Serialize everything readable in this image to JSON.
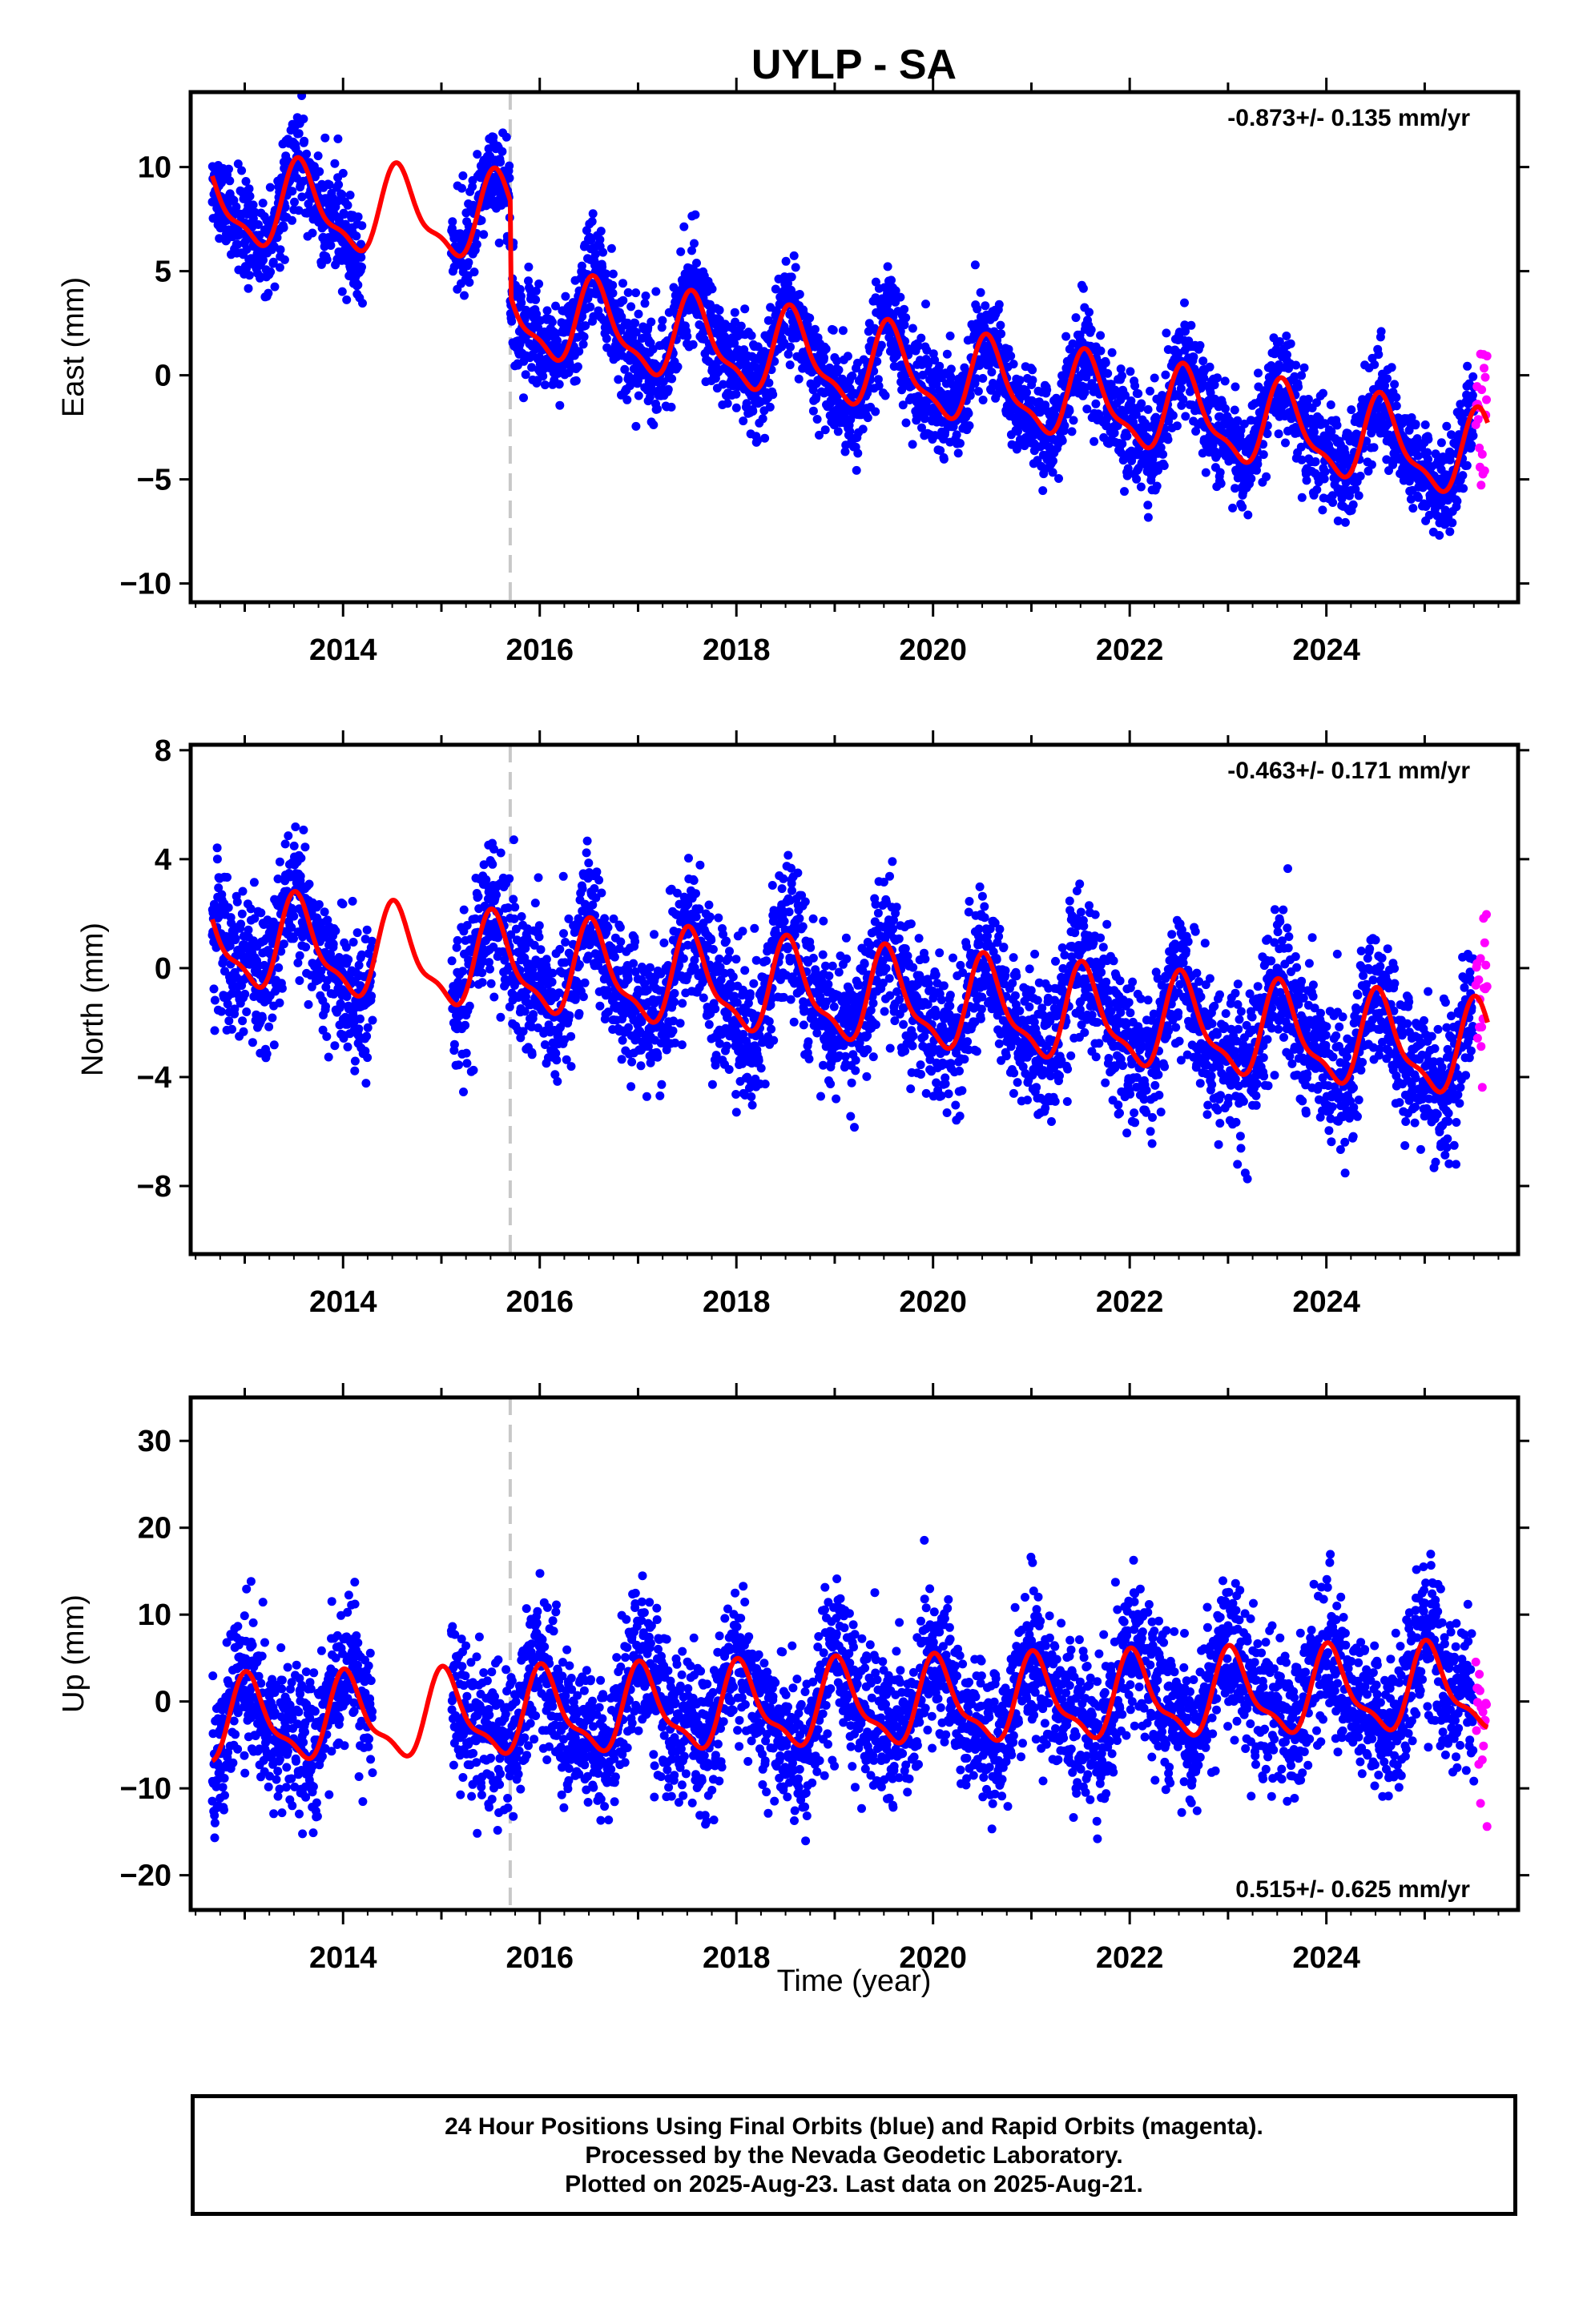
{
  "title": "UYLP - SA",
  "x_axis_label": "Time (year)",
  "footer": {
    "line1": "24 Hour Positions Using Final Orbits (blue) and Rapid Orbits (magenta).",
    "line2": "Processed by the Nevada Geodetic Laboratory.",
    "line3": "Plotted on 2025-Aug-23. Last data on 2025-Aug-21."
  },
  "colors": {
    "final_orbits": "#0000ff",
    "rapid_orbits": "#ff00ff",
    "model_fit": "#ff0000",
    "equipment_change_line": "#c8c8c8"
  },
  "chart_data": [
    {
      "type": "scatter",
      "panel": "east",
      "ylabel": "East (mm)",
      "rate_text": "-0.873+/- 0.135 mm/yr",
      "rate_position": "top-right",
      "xlim": [
        2012.45,
        2025.95
      ],
      "ylim": [
        -10.9,
        13.6
      ],
      "yticks": [
        -10,
        -5,
        0,
        5,
        10
      ],
      "ytick_labels": [
        "−10",
        "−5",
        "0",
        "5",
        "10"
      ],
      "xticks": [
        2014,
        2016,
        2018,
        2020,
        2022,
        2024
      ],
      "xtick_labels": [
        "2014",
        "2016",
        "2018",
        "2020",
        "2022",
        "2024"
      ],
      "equipment_change_x": 2015.7,
      "data_span": [
        2012.67,
        2025.5
      ],
      "rapid_span": [
        2025.52,
        2025.64
      ],
      "gaps": [
        [
          2014.2,
          2015.1
        ]
      ],
      "trend": [
        {
          "x0": 2012.67,
          "x1": 2015.7,
          "y0": 8.2,
          "slope": -0.25
        },
        {
          "x0": 2015.7,
          "x1": 2025.64,
          "y0": 2.9,
          "slope": -0.7
        }
      ],
      "seasonal_amplitude": 1.9,
      "seasonal_phase_peak": 0.58,
      "scatter_sigma": 1.2,
      "series": [
        {
          "name": "final orbits",
          "points_generated": true
        },
        {
          "name": "rapid orbits",
          "points_generated": true
        },
        {
          "name": "model fit",
          "curve": true
        }
      ]
    },
    {
      "type": "scatter",
      "panel": "north",
      "ylabel": "North (mm)",
      "rate_text": "-0.463+/- 0.171 mm/yr",
      "rate_position": "top-right",
      "xlim": [
        2012.45,
        2025.95
      ],
      "ylim": [
        -10.5,
        8.2
      ],
      "yticks": [
        -8,
        -4,
        0,
        4,
        8
      ],
      "ytick_labels": [
        "−8",
        "−4",
        "0",
        "4",
        "8"
      ],
      "xticks": [
        2014,
        2016,
        2018,
        2020,
        2022,
        2024
      ],
      "xtick_labels": [
        "2014",
        "2016",
        "2018",
        "2020",
        "2022",
        "2024"
      ],
      "equipment_change_x": 2015.7,
      "data_span": [
        2012.67,
        2025.5
      ],
      "rapid_span": [
        2025.52,
        2025.64
      ],
      "gaps": [
        [
          2014.3,
          2015.1
        ]
      ],
      "trend": [
        {
          "x0": 2012.67,
          "x1": 2025.64,
          "y0": 1.0,
          "slope": -0.32
        }
      ],
      "seasonal_amplitude": 1.6,
      "seasonal_phase_peak": 0.55,
      "scatter_sigma": 1.3,
      "series": [
        {
          "name": "final orbits",
          "points_generated": true
        },
        {
          "name": "rapid orbits",
          "points_generated": true
        },
        {
          "name": "model fit",
          "curve": true
        }
      ]
    },
    {
      "type": "scatter",
      "panel": "up",
      "ylabel": "Up (mm)",
      "rate_text": "0.515+/- 0.625 mm/yr",
      "rate_position": "bottom-right",
      "xlim": [
        2012.45,
        2025.95
      ],
      "ylim": [
        -24,
        35
      ],
      "yticks": [
        -20,
        -10,
        0,
        10,
        20,
        30
      ],
      "ytick_labels": [
        "−20",
        "−10",
        "0",
        "10",
        "20",
        "30"
      ],
      "xticks": [
        2014,
        2016,
        2018,
        2020,
        2022,
        2024
      ],
      "xtick_labels": [
        "2014",
        "2016",
        "2018",
        "2020",
        "2022",
        "2024"
      ],
      "equipment_change_x": 2015.7,
      "data_span": [
        2012.67,
        2025.5
      ],
      "rapid_span": [
        2025.52,
        2025.64
      ],
      "gaps": [
        [
          2014.3,
          2015.1
        ]
      ],
      "trend": [
        {
          "x0": 2012.67,
          "x1": 2025.64,
          "y0": -2.5,
          "slope": 0.3
        }
      ],
      "seasonal_amplitude": 4.5,
      "seasonal_phase_peak": 0.05,
      "scatter_sigma": 4.2,
      "series": [
        {
          "name": "final orbits",
          "points_generated": true
        },
        {
          "name": "rapid orbits",
          "points_generated": true
        },
        {
          "name": "model fit",
          "curve": true
        }
      ]
    }
  ]
}
